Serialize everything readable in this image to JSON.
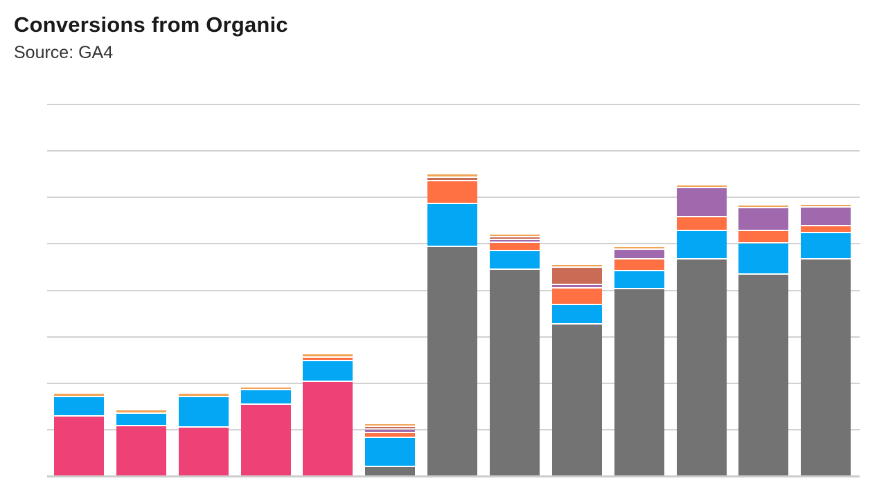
{
  "header": {
    "title": "Conversions from Organic",
    "subtitle": "Source: GA4"
  },
  "colors": {
    "background": "#ffffff",
    "gridline": "#d2d2d2",
    "axis_line": "#cccccc",
    "title_text": "#1a1a1a",
    "subtitle_text": "#333333"
  },
  "chart_data": {
    "type": "bar",
    "stacked": true,
    "orientation": "vertical",
    "title": "Conversions from Organic",
    "subtitle": "Source: GA4",
    "legend": "none",
    "grid": true,
    "bar_count": 13,
    "x_axis": {
      "tick_labels_visible": false
    },
    "y_axis": {
      "tick_labels_visible": false,
      "gridline_count": 9,
      "units_per_gridline_gap": 10,
      "ylim": [
        0,
        80
      ]
    },
    "series": [
      {
        "name": "pink",
        "color": "#ee4277",
        "values": [
          12.7,
          10.6,
          10.3,
          15.2,
          20.1,
          0,
          0,
          0,
          0,
          0,
          0,
          0,
          0
        ]
      },
      {
        "name": "gray",
        "color": "#737373",
        "values": [
          0,
          0,
          0,
          0,
          0,
          1.8,
          49.2,
          44.3,
          32.5,
          40.1,
          46.5,
          43.2,
          46.5
        ]
      },
      {
        "name": "blue",
        "color": "#04a7f4",
        "values": [
          3.9,
          2.4,
          6.3,
          2.8,
          4.2,
          6.0,
          8.9,
          3.7,
          3.9,
          3.6,
          5.8,
          6.4,
          5.4
        ]
      },
      {
        "name": "orange",
        "color": "#ff7043",
        "values": [
          0,
          0,
          0,
          0,
          0.5,
          0.7,
          4.6,
          1.5,
          3.3,
          2.2,
          2.7,
          2.4,
          1.2
        ]
      },
      {
        "name": "purple",
        "color": "#a069ad",
        "values": [
          0,
          0,
          0,
          0,
          0,
          0.4,
          0,
          0.2,
          0.4,
          1.8,
          6.0,
          4.6,
          3.7
        ]
      },
      {
        "name": "sienna",
        "color": "#c96b55",
        "values": [
          0,
          0,
          0,
          0,
          0,
          0.3,
          0.45,
          0.3,
          3.4,
          0,
          0,
          0,
          0
        ]
      },
      {
        "name": "light-orange",
        "color": "#f2a356",
        "values": [
          0.4,
          0.4,
          0.4,
          0.4,
          0.4,
          0.4,
          0.45,
          0.4,
          0.3,
          0.3,
          0.3,
          0.3,
          0.3
        ]
      }
    ]
  }
}
